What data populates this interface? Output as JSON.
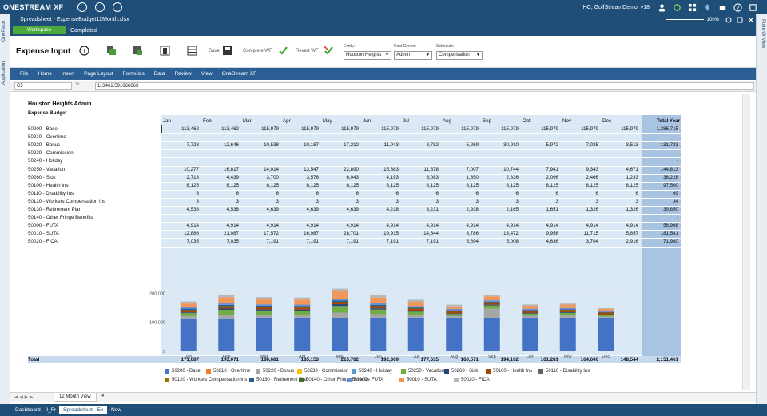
{
  "app": {
    "logo": "ONESTREAM",
    "logo_suffix": "XF",
    "user": "HC, GolfStreamDemo_v18"
  },
  "side": {
    "left_tabs": [
      "OnePlace",
      "Application"
    ],
    "right_tab": "Point Of View"
  },
  "doc": {
    "title": "Spreadsheet - ExpenseBudget12Month.xlsx",
    "zoom": "100%"
  },
  "workflow": {
    "button": "Workspace",
    "status": "Completed"
  },
  "toolbar": {
    "title": "Expense Input",
    "save": "Save",
    "complete_wf": "Complete WF",
    "revert_wf": "Revert WF",
    "entity_label": "Entity:",
    "entity_value": "Houston Heights",
    "cost_center_label": "Cost Center:",
    "cost_center_value": "Admin",
    "schedule_label": "Schedule:",
    "schedule_value": "Compensation"
  },
  "ribbon": [
    "File",
    "Home",
    "Insert",
    "Page Layout",
    "Formulas",
    "Data",
    "Review",
    "View",
    "OneStream XF"
  ],
  "formula": {
    "cell_ref": "C5",
    "fx": "fx",
    "value": "113461.591666663"
  },
  "sheet": {
    "title": "Houston Heights Admin",
    "subtitle": "Expense Budget",
    "months": [
      "Jan",
      "Feb",
      "Mar",
      "Apr",
      "May",
      "Jun",
      "Jul",
      "Aug",
      "Sep",
      "Oct",
      "Nov",
      "Dec"
    ],
    "total_year": "Total Year",
    "rows": [
      {
        "label": "50200 - Base",
        "values": [
          "113,462",
          "113,462",
          "115,979",
          "115,979",
          "115,979",
          "115,979",
          "115,979",
          "115,979",
          "115,979",
          "115,979",
          "115,979",
          "115,979"
        ],
        "total": "1,386,715"
      },
      {
        "label": "50210 - Overtime",
        "values": [
          "",
          "",
          "",
          "",
          "",
          "",
          "",
          "",
          "",
          "",
          "",
          ""
        ],
        "total": "-"
      },
      {
        "label": "50220 - Bonus",
        "values": [
          "7,728",
          "12,646",
          "10,538",
          "10,187",
          "17,212",
          "11,943",
          "8,782",
          "5,269",
          "30,910",
          "5,972",
          "7,025",
          "3,513"
        ],
        "total": "131,723"
      },
      {
        "label": "50230 - Commission",
        "values": [
          "",
          "",
          "",
          "",
          "",
          "",
          "",
          "",
          "",
          "",
          "",
          ""
        ],
        "total": "-"
      },
      {
        "label": "50240 - Holiday",
        "values": [
          "",
          "",
          "",
          "",
          "",
          "",
          "",
          "",
          "",
          "",
          "",
          ""
        ],
        "total": "-"
      },
      {
        "label": "50250 - Vacation",
        "values": [
          "10,277",
          "16,817",
          "14,014",
          "13,547",
          "22,890",
          "15,883",
          "11,678",
          "7,007",
          "10,744",
          "7,941",
          "9,343",
          "4,671"
        ],
        "total": "144,813"
      },
      {
        "label": "50260 - Sick",
        "values": [
          "2,713",
          "4,439",
          "3,700",
          "3,576",
          "6,043",
          "4,193",
          "3,083",
          "1,850",
          "2,836",
          "2,096",
          "2,466",
          "1,233"
        ],
        "total": "38,228"
      },
      {
        "label": "50100 - Health Ins",
        "values": [
          "8,125",
          "8,125",
          "8,125",
          "8,125",
          "8,125",
          "8,125",
          "8,125",
          "8,125",
          "8,125",
          "8,125",
          "8,125",
          "8,125"
        ],
        "total": "97,500"
      },
      {
        "label": "50110 - Disability Ins",
        "values": [
          "6",
          "6",
          "6",
          "6",
          "6",
          "6",
          "6",
          "6",
          "6",
          "6",
          "6",
          "6"
        ],
        "total": "69"
      },
      {
        "label": "50120 - Workers Compensation Ins",
        "values": [
          "3",
          "3",
          "3",
          "3",
          "3",
          "3",
          "3",
          "3",
          "3",
          "3",
          "3",
          "3"
        ],
        "total": "34"
      },
      {
        "label": "50130 - Retirement Plan",
        "values": [
          "4,538",
          "4,538",
          "4,639",
          "4,639",
          "4,639",
          "4,218",
          "3,231",
          "2,938",
          "2,165",
          "1,651",
          "1,326",
          "1,326"
        ],
        "total": "39,850"
      },
      {
        "label": "50140 - Other Fringe Benefits",
        "values": [
          "",
          "",
          "",
          "",
          "",
          "",
          "",
          "",
          "",
          "",
          "",
          ""
        ],
        "total": "-"
      },
      {
        "label": "50000 - FUTA",
        "values": [
          "4,914",
          "4,914",
          "4,914",
          "4,914",
          "4,914",
          "4,914",
          "4,914",
          "4,914",
          "4,914",
          "4,914",
          "4,914",
          "4,914"
        ],
        "total": "58,968"
      },
      {
        "label": "50010 - SUTA",
        "values": [
          "12,886",
          "21,087",
          "17,572",
          "16,987",
          "28,701",
          "19,915",
          "14,644",
          "8,786",
          "13,472",
          "9,958",
          "11,715",
          "5,857"
        ],
        "total": "181,581"
      },
      {
        "label": "50020 - FICA",
        "values": [
          "7,035",
          "7,035",
          "7,191",
          "7,191",
          "7,191",
          "7,191",
          "7,191",
          "5,694",
          "5,008",
          "4,636",
          "3,704",
          "2,916"
        ],
        "total": "71,980"
      }
    ],
    "total_row": {
      "label": "Total",
      "values": [
        "171,687",
        "193,071",
        "186,681",
        "185,153",
        "215,702",
        "192,369",
        "177,635",
        "160,571",
        "194,162",
        "161,281",
        "164,606",
        "148,544"
      ],
      "total": "2,151,461"
    },
    "tab": "12 Month View"
  },
  "chart_data": {
    "type": "bar",
    "stacked": true,
    "categories": [
      "Jan",
      "Feb",
      "Mar",
      "Apr",
      "May",
      "Jun",
      "Jul",
      "Aug",
      "Sep",
      "Oct",
      "Nov",
      "Dec"
    ],
    "y_ticks": [
      "0",
      "100,000",
      "200,000"
    ],
    "ylim": [
      0,
      220000
    ],
    "legend_position": "bottom",
    "series": [
      {
        "name": "50200 - Base",
        "color": "#4472c4",
        "values": [
          113462,
          113462,
          115979,
          115979,
          115979,
          115979,
          115979,
          115979,
          115979,
          115979,
          115979,
          115979
        ]
      },
      {
        "name": "50210 - Overtime",
        "color": "#ed7d31",
        "values": [
          0,
          0,
          0,
          0,
          0,
          0,
          0,
          0,
          0,
          0,
          0,
          0
        ]
      },
      {
        "name": "50220 - Bonus",
        "color": "#a5a5a5",
        "values": [
          7728,
          12646,
          10538,
          10187,
          17212,
          11943,
          8782,
          5269,
          30910,
          5972,
          7025,
          3513
        ]
      },
      {
        "name": "50230 - Commission",
        "color": "#ffc000",
        "values": [
          0,
          0,
          0,
          0,
          0,
          0,
          0,
          0,
          0,
          0,
          0,
          0
        ]
      },
      {
        "name": "50240 - Holiday",
        "color": "#5b9bd5",
        "values": [
          0,
          0,
          0,
          0,
          0,
          0,
          0,
          0,
          0,
          0,
          0,
          0
        ]
      },
      {
        "name": "50250 - Vacation",
        "color": "#70ad47",
        "values": [
          10277,
          16817,
          14014,
          13547,
          22890,
          15883,
          11678,
          7007,
          10744,
          7941,
          9343,
          4671
        ]
      },
      {
        "name": "50260 - Sick",
        "color": "#264478",
        "values": [
          2713,
          4439,
          3700,
          3576,
          6043,
          4193,
          3083,
          1850,
          2836,
          2096,
          2466,
          1233
        ]
      },
      {
        "name": "50100 - Health Ins",
        "color": "#9e480e",
        "values": [
          8125,
          8125,
          8125,
          8125,
          8125,
          8125,
          8125,
          8125,
          8125,
          8125,
          8125,
          8125
        ]
      },
      {
        "name": "50110 - Disability Ins",
        "color": "#636363",
        "values": [
          6,
          6,
          6,
          6,
          6,
          6,
          6,
          6,
          6,
          6,
          6,
          6
        ]
      },
      {
        "name": "50120 - Workers Compensation Ins",
        "color": "#997300",
        "values": [
          3,
          3,
          3,
          3,
          3,
          3,
          3,
          3,
          3,
          3,
          3,
          3
        ]
      },
      {
        "name": "50130 - Retirement Plan",
        "color": "#255e91",
        "values": [
          4538,
          4538,
          4639,
          4639,
          4639,
          4218,
          3231,
          2938,
          2165,
          1651,
          1326,
          1326
        ]
      },
      {
        "name": "50140 - Other Fringe Benefits",
        "color": "#43682b",
        "values": [
          0,
          0,
          0,
          0,
          0,
          0,
          0,
          0,
          0,
          0,
          0,
          0
        ]
      },
      {
        "name": "50000 - FUTA",
        "color": "#698ed0",
        "values": [
          4914,
          4914,
          4914,
          4914,
          4914,
          4914,
          4914,
          4914,
          4914,
          4914,
          4914,
          4914
        ]
      },
      {
        "name": "50010 - SUTA",
        "color": "#f1975a",
        "values": [
          12886,
          21087,
          17572,
          16987,
          28701,
          19915,
          14644,
          8786,
          13472,
          9958,
          11715,
          5857
        ]
      },
      {
        "name": "50020 - FICA",
        "color": "#b7b7b7",
        "values": [
          7035,
          7035,
          7191,
          7191,
          7191,
          7191,
          7191,
          5694,
          5008,
          4636,
          3704,
          2916
        ]
      }
    ]
  },
  "bottom_tabs": [
    "Dashboard - 0_Fr",
    "Spreadsheet - Ex",
    "New"
  ]
}
